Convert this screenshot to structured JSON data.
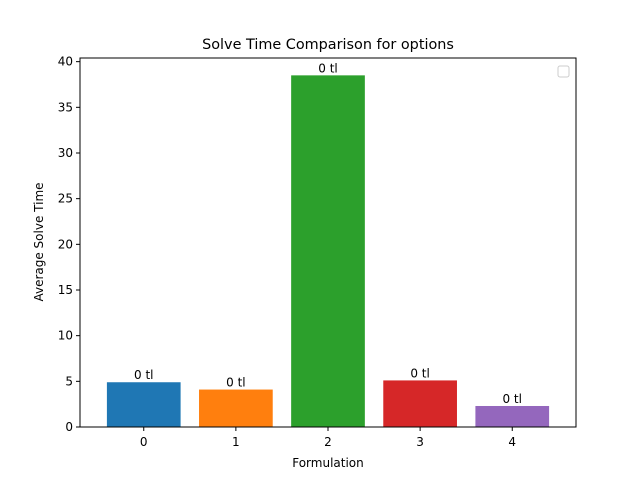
{
  "chart_data": {
    "type": "bar",
    "title": "Solve Time Comparison for options",
    "xlabel": "Formulation",
    "ylabel": "Average Solve Time",
    "categories": [
      "0",
      "1",
      "2",
      "3",
      "4"
    ],
    "values": [
      4.9,
      4.1,
      38.5,
      5.1,
      2.3
    ],
    "bar_labels": [
      "0 tl",
      "0 tl",
      "0 tl",
      "0 tl",
      "0 tl"
    ],
    "colors": [
      "#1f77b4",
      "#ff7f0e",
      "#2ca02c",
      "#d62728",
      "#9467bd"
    ],
    "ylim": [
      0,
      40.4
    ],
    "yticks": [
      0,
      5,
      10,
      15,
      20,
      25,
      30,
      35,
      40
    ],
    "grid": false,
    "legend": {
      "placement": "top-right",
      "entries": []
    }
  }
}
